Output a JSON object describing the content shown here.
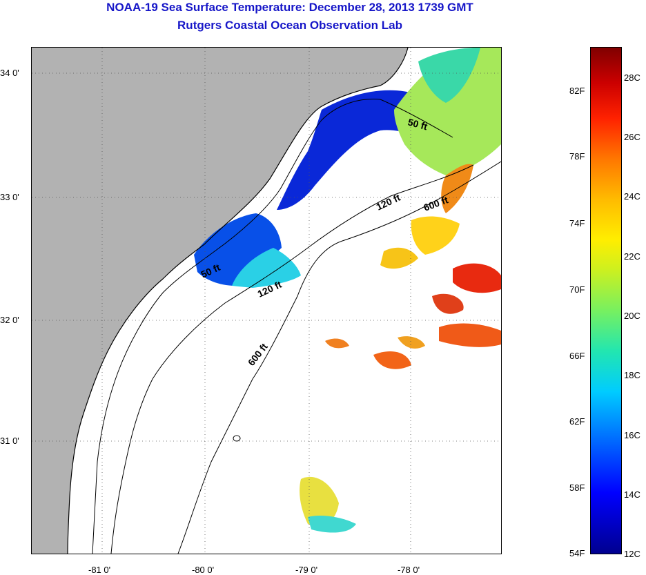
{
  "title": {
    "line1": "NOAA-19 Sea Surface Temperature:  December 28, 2013 1739 GMT",
    "line2": "Rutgers Coastal Ocean Observation Lab"
  },
  "map": {
    "lon_labels": [
      "-81 0'",
      "-80 0'",
      "-79 0'",
      "-78 0'"
    ],
    "lat_labels": [
      "34 0'",
      "33 0'",
      "32 0'",
      "31 0'"
    ],
    "lon_range": [
      -81.7,
      -77.15
    ],
    "lat_range": [
      30.2,
      34.2
    ],
    "grid": "dotted",
    "contour_labels": [
      "50 ft",
      "50 ft",
      "120 ft",
      "120 ft",
      "600 ft",
      "600 ft"
    ],
    "colors": {
      "land": "#b2b2b2",
      "no_data": "#ffffff",
      "grid": "#555555"
    }
  },
  "colorbar": {
    "fahrenheit_labels": [
      "82F",
      "78F",
      "74F",
      "70F",
      "66F",
      "62F",
      "58F",
      "54F"
    ],
    "celsius_labels": [
      "28C",
      "26C",
      "24C",
      "22C",
      "20C",
      "18C",
      "16C",
      "14C",
      "12C"
    ],
    "range_c": [
      12,
      29
    ]
  }
}
